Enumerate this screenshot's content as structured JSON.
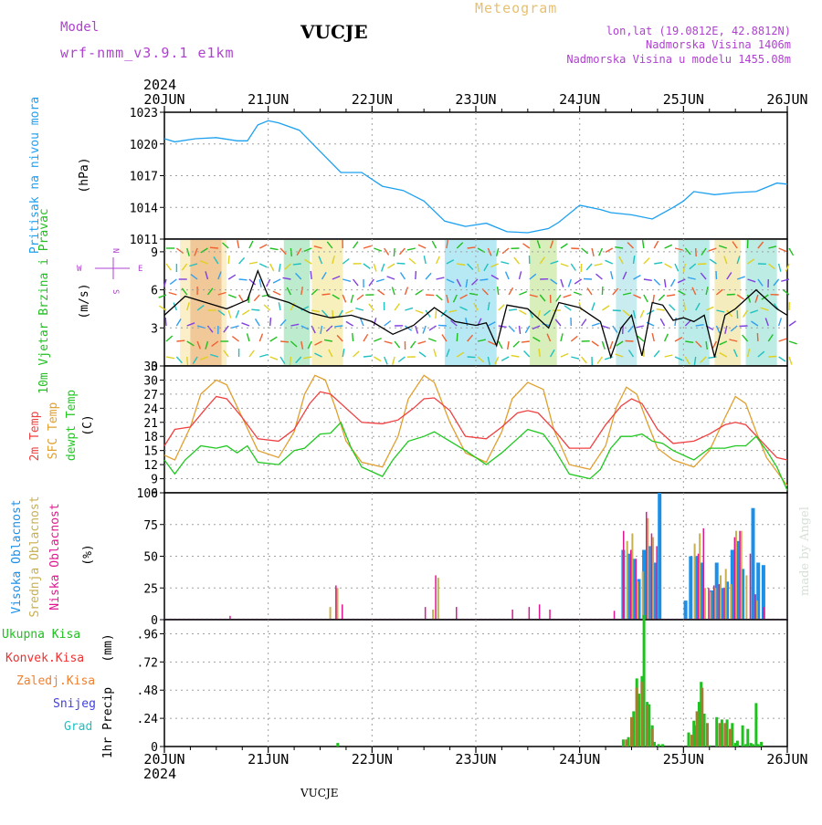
{
  "header": {
    "model_label": "Model",
    "model_name": "wrf-nmm_v3.9.1 e1km",
    "station": "VUCJE",
    "meteogram": "Meteogram",
    "lonlat": "lon,lat (19.0812E, 42.8812N)",
    "elevation": "Nadmorska Visina 1406m",
    "model_elevation": "Nadmorska Visina u modelu 1455.08m",
    "year_top": "2024",
    "year_bottom": "2024",
    "footer_station": "VUCJE",
    "credit": "made by Angel"
  },
  "colors": {
    "pressure": "#1ca0f0",
    "wind_label": "#20c020",
    "wind_speed": "#000000",
    "temp2m": "#f04040",
    "sfc_temp": "#e0a030",
    "dewpt": "#20c820",
    "cloud_high": "#1c90e8",
    "cloud_mid": "#c8b050",
    "cloud_low": "#e01890",
    "precip_total": "#20c020",
    "precip_conv": "#f03030",
    "precip_frz": "#f08030",
    "snow": "#4040e0",
    "hail": "#20c0c0",
    "title_purple": "#b040d0",
    "meteogram_gold": "#e8c070"
  },
  "chart_data": [
    {
      "type": "line",
      "panel": "pressure",
      "ylabel": "Pritisak na nivou mora",
      "unit": "(hPa)",
      "x_days": [
        "20JUN",
        "21JUN",
        "22JUN",
        "23JUN",
        "24JUN",
        "25JUN",
        "26JUN"
      ],
      "ylim": [
        1011,
        1023
      ],
      "yticks": [
        1011,
        1014,
        1017,
        1020,
        1023
      ],
      "grid": true,
      "series": [
        {
          "x": [
            0,
            0.1,
            0.3,
            0.5,
            0.7,
            0.8,
            0.9,
            1.0,
            1.1,
            1.3,
            1.5,
            1.7,
            1.9,
            2.1,
            2.3,
            2.5,
            2.7,
            2.9,
            3.1,
            3.3,
            3.5,
            3.7,
            3.8,
            4.0,
            4.2,
            4.3,
            4.5,
            4.7,
            4.9,
            5.0,
            5.1,
            5.3,
            5.5,
            5.7,
            5.9,
            6.0
          ],
          "values": [
            1020.5,
            1020.2,
            1020.5,
            1020.6,
            1020.3,
            1020.3,
            1021.8,
            1022.2,
            1022,
            1021.3,
            1019.3,
            1017.3,
            1017.3,
            1016,
            1015.6,
            1014.6,
            1012.7,
            1012.2,
            1012.5,
            1011.7,
            1011.6,
            1012,
            1012.6,
            1014.2,
            1013.8,
            1013.5,
            1013.3,
            1012.9,
            1014,
            1014.6,
            1015.5,
            1015.2,
            1015.4,
            1015.5,
            1016.3,
            1016.2
          ]
        }
      ]
    },
    {
      "type": "line",
      "panel": "wind",
      "ylabel": "10m Vjetar Brzina i Pravac",
      "unit": "(m/s)",
      "compass": {
        "n": "N",
        "w": "W",
        "e": "E",
        "s": "S"
      },
      "ylim": [
        0,
        10
      ],
      "yticks": [
        0,
        3,
        6,
        9
      ],
      "grid": true,
      "series": [
        {
          "name": "speed",
          "x": [
            0,
            0.2,
            0.4,
            0.6,
            0.8,
            0.9,
            1.0,
            1.2,
            1.4,
            1.6,
            1.8,
            2.0,
            2.2,
            2.4,
            2.6,
            2.8,
            3.0,
            3.1,
            3.2,
            3.3,
            3.5,
            3.7,
            3.8,
            4.0,
            4.2,
            4.3,
            4.4,
            4.5,
            4.6,
            4.7,
            4.8,
            4.9,
            5.0,
            5.1,
            5.2,
            5.3,
            5.4,
            5.5,
            5.7,
            5.9,
            6.0
          ],
          "values": [
            4,
            5.5,
            5,
            4.5,
            5.2,
            7.5,
            5.5,
            5,
            4.2,
            3.8,
            4,
            3.5,
            2.5,
            3.2,
            4.6,
            3.5,
            3.2,
            3.4,
            1.6,
            4.8,
            4.5,
            3,
            5,
            4.6,
            3.5,
            0.7,
            3,
            4,
            0.8,
            5,
            4.8,
            3.6,
            3.8,
            3.5,
            4,
            0.7,
            4,
            4.5,
            6,
            4.5,
            4
          ]
        }
      ]
    },
    {
      "type": "line",
      "panel": "temperature",
      "ylabels": [
        "2m Temp",
        "SFC Temp",
        "dewpt Temp"
      ],
      "unit": "(C)",
      "ylim": [
        6,
        33
      ],
      "yticks": [
        6,
        9,
        12,
        15,
        18,
        21,
        24,
        27,
        30,
        33
      ],
      "grid": true,
      "series": [
        {
          "name": "2m Temp",
          "x": [
            0,
            0.1,
            0.25,
            0.4,
            0.5,
            0.6,
            0.75,
            0.9,
            1.1,
            1.25,
            1.4,
            1.5,
            1.6,
            1.75,
            1.9,
            2.1,
            2.25,
            2.4,
            2.5,
            2.6,
            2.75,
            2.9,
            3.1,
            3.25,
            3.4,
            3.5,
            3.6,
            3.75,
            3.9,
            4.1,
            4.25,
            4.4,
            4.5,
            4.6,
            4.75,
            4.9,
            5.1,
            5.25,
            5.4,
            5.5,
            5.6,
            5.75,
            5.9,
            6.0
          ],
          "values": [
            16,
            19.5,
            20,
            24,
            26.5,
            26,
            22,
            17.5,
            17,
            19.5,
            25,
            27.5,
            27,
            24,
            21,
            20.7,
            21.5,
            24,
            26,
            26.2,
            23.5,
            18,
            17.5,
            20,
            23,
            23.5,
            23,
            19.5,
            15.5,
            15.5,
            20.5,
            24.5,
            26,
            25,
            19.5,
            16.5,
            17,
            18.5,
            20.5,
            21,
            20.5,
            17,
            13.5,
            13
          ]
        },
        {
          "name": "SFC Temp",
          "x": [
            0,
            0.1,
            0.25,
            0.35,
            0.5,
            0.6,
            0.75,
            0.9,
            1.1,
            1.25,
            1.35,
            1.45,
            1.55,
            1.65,
            1.75,
            1.9,
            2.1,
            2.25,
            2.35,
            2.5,
            2.6,
            2.75,
            2.9,
            3.1,
            3.25,
            3.35,
            3.5,
            3.65,
            3.75,
            3.9,
            4.1,
            4.25,
            4.35,
            4.45,
            4.55,
            4.65,
            4.75,
            4.9,
            5.1,
            5.25,
            5.4,
            5.5,
            5.6,
            5.7,
            5.8,
            5.9,
            6.0
          ],
          "values": [
            14,
            13,
            20,
            27,
            30,
            29,
            22,
            15,
            13.5,
            19,
            27,
            31,
            30,
            24,
            17,
            12.5,
            11.5,
            18,
            26,
            31,
            29.5,
            21,
            14.5,
            12.5,
            19,
            26,
            29.5,
            28,
            19.5,
            12,
            11,
            16,
            24,
            28.5,
            27,
            21,
            15.5,
            13,
            11.5,
            15,
            22,
            26.5,
            25,
            19,
            13.5,
            10.5,
            7.5
          ]
        },
        {
          "name": "dewpt Temp",
          "x": [
            0,
            0.1,
            0.2,
            0.35,
            0.5,
            0.6,
            0.7,
            0.8,
            0.9,
            1.1,
            1.25,
            1.35,
            1.5,
            1.6,
            1.7,
            1.8,
            1.9,
            2.1,
            2.2,
            2.35,
            2.5,
            2.6,
            2.75,
            2.9,
            3.1,
            3.25,
            3.4,
            3.5,
            3.65,
            3.75,
            3.9,
            4.1,
            4.2,
            4.3,
            4.4,
            4.5,
            4.6,
            4.7,
            4.8,
            4.9,
            5.1,
            5.25,
            5.4,
            5.5,
            5.6,
            5.7,
            5.8,
            5.9,
            6.0
          ],
          "values": [
            13,
            10,
            13,
            16,
            15.5,
            16,
            14.5,
            16,
            12.5,
            12,
            15,
            15.5,
            18.5,
            18.7,
            21,
            15.5,
            11.5,
            9.5,
            13,
            17,
            18,
            19,
            17,
            15,
            12,
            14.5,
            17.5,
            19.5,
            18.5,
            15.5,
            10,
            9,
            11,
            15.5,
            18,
            18,
            18.5,
            17,
            16.5,
            15,
            13,
            15.5,
            15.5,
            16,
            16,
            18,
            15,
            11.5,
            6.5
          ]
        }
      ]
    },
    {
      "type": "bar",
      "panel": "clouds",
      "ylabels": [
        "Visoka Oblacnost",
        "Srednja Oblacnost",
        "Niska Oblacnost"
      ],
      "unit": "(%)",
      "ylim": [
        0,
        100
      ],
      "yticks": [
        0,
        25,
        50,
        75,
        100
      ],
      "grid": true,
      "series": [
        {
          "name": "Visoka Oblacnost",
          "x": [
            4.42,
            4.47,
            4.52,
            4.57,
            4.62,
            4.67,
            4.72,
            4.77,
            5.02,
            5.07,
            5.12,
            5.17,
            5.27,
            5.32,
            5.37,
            5.42,
            5.47,
            5.52,
            5.57,
            5.67,
            5.72,
            5.77
          ],
          "values": [
            55,
            52,
            48,
            32,
            55,
            58,
            45,
            100,
            15,
            50,
            50,
            45,
            23,
            45,
            25,
            30,
            55,
            62,
            40,
            88,
            45,
            43
          ]
        },
        {
          "name": "Srednja Oblacnost",
          "x": [
            1.58,
            1.65,
            2.57,
            2.62,
            4.44,
            4.49,
            4.54,
            4.59,
            4.64,
            4.69,
            5.09,
            5.14,
            5.19,
            5.24,
            5.29,
            5.34,
            5.39,
            5.44,
            5.49,
            5.54,
            5.59,
            5.69
          ],
          "values": [
            10,
            25,
            8,
            33,
            62,
            68,
            30,
            38,
            80,
            65,
            60,
            68,
            25,
            22,
            25,
            35,
            40,
            28,
            70,
            70,
            35,
            15
          ]
        },
        {
          "name": "Niska Oblacnost",
          "x": [
            0.6,
            1.62,
            1.68,
            2.48,
            2.58,
            2.78,
            3.32,
            3.48,
            3.58,
            3.68,
            4.3,
            4.39,
            4.46,
            4.51,
            4.61,
            4.66,
            4.71,
            5.11,
            5.16,
            5.21,
            5.26,
            5.31,
            5.36,
            5.46,
            5.51,
            5.61,
            5.66,
            5.74
          ],
          "values": [
            3,
            27,
            12,
            10,
            35,
            10,
            8,
            10,
            12,
            8,
            7,
            70,
            55,
            48,
            85,
            68,
            58,
            52,
            72,
            25,
            27,
            28,
            25,
            65,
            70,
            52,
            20,
            10
          ]
        }
      ]
    },
    {
      "type": "bar",
      "panel": "precipitation",
      "ylabels": [
        "Ukupna Kisa",
        "Konvek.Kisa",
        "Zaledj.Kisa",
        "Snijeg",
        "Grad"
      ],
      "ylabel": "1hr Precip",
      "unit": "(mm)",
      "x_days": [
        "20JUN",
        "21JUN",
        "22JUN",
        "23JUN",
        "24JUN",
        "25JUN",
        "26JUN"
      ],
      "ylim": [
        0,
        1.08
      ],
      "yticks": [
        0,
        0.24,
        0.48,
        0.72,
        0.96
      ],
      "grid": true,
      "series": [
        {
          "name": "Ukupna Kisa",
          "x": [
            1.67,
            4.42,
            4.47,
            4.52,
            4.55,
            4.57,
            4.6,
            4.62,
            4.65,
            4.67,
            4.7,
            4.72,
            4.76,
            4.8,
            5.05,
            5.1,
            5.12,
            5.15,
            5.17,
            5.2,
            5.25,
            5.32,
            5.37,
            5.42,
            5.47,
            5.5,
            5.52,
            5.57,
            5.6,
            5.62,
            5.65,
            5.67,
            5.7,
            5.72,
            5.75
          ],
          "values": [
            0.03,
            0.06,
            0.08,
            0.3,
            0.58,
            0.45,
            0.6,
            1.12,
            0.38,
            0.36,
            0.18,
            0.04,
            0.02,
            0.02,
            0.12,
            0.22,
            0.18,
            0.38,
            0.55,
            0.28,
            0.01,
            0.25,
            0.23,
            0.23,
            0.2,
            0.03,
            0.05,
            0.18,
            0.02,
            0.15,
            0.03,
            0.02,
            0.37,
            0.02,
            0.04
          ]
        },
        {
          "name": "Konvek.Kisa",
          "x": [
            4.45,
            4.5,
            4.55,
            4.6,
            4.65,
            4.7,
            5.08,
            5.13,
            5.18,
            5.23,
            5.35,
            5.4,
            5.45
          ],
          "values": [
            0.06,
            0.25,
            0.5,
            0.55,
            0.35,
            0.15,
            0.1,
            0.3,
            0.5,
            0.2,
            0.2,
            0.2,
            0.15
          ]
        },
        {
          "name": "Zaledj.Kisa",
          "x": [],
          "values": []
        },
        {
          "name": "Snijeg",
          "x": [],
          "values": []
        },
        {
          "name": "Grad",
          "x": [],
          "values": []
        }
      ]
    }
  ]
}
